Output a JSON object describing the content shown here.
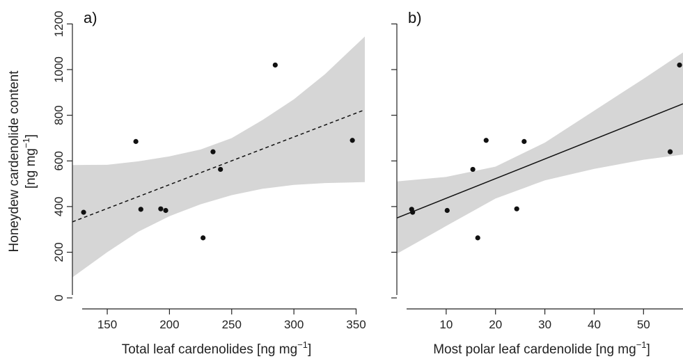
{
  "figure": {
    "ylabel_line1": "Honeydew cardenolide content",
    "ylabel_line2": "[ng mg",
    "ylabel_line2_sup": "−1",
    "ylabel_line2_end": "]"
  },
  "chart_data": [
    {
      "type": "scatter",
      "panel_label": "a)",
      "xlabel": "Total leaf cardenolides [ng mg",
      "xlabel_sup": "−1",
      "xlabel_end": "]",
      "xlim": [
        122,
        357
      ],
      "ylim": [
        -30,
        1250
      ],
      "x_ticks": [
        150,
        200,
        250,
        300,
        350
      ],
      "y_ticks": [
        0,
        200,
        400,
        600,
        800,
        1000,
        1200
      ],
      "points": [
        {
          "x": 131,
          "y": 375
        },
        {
          "x": 173,
          "y": 685
        },
        {
          "x": 177,
          "y": 388
        },
        {
          "x": 193,
          "y": 390
        },
        {
          "x": 197,
          "y": 383
        },
        {
          "x": 227,
          "y": 263
        },
        {
          "x": 235,
          "y": 640
        },
        {
          "x": 241,
          "y": 563
        },
        {
          "x": 285,
          "y": 1020
        },
        {
          "x": 347,
          "y": 690
        }
      ],
      "fit_line": {
        "style": "dashed",
        "x": [
          122,
          357
        ],
        "y": [
          333,
          824
        ]
      },
      "confidence_band": {
        "x": [
          122,
          150,
          175,
          200,
          225,
          250,
          275,
          300,
          325,
          357
        ],
        "lower": [
          90,
          200,
          290,
          358,
          410,
          450,
          478,
          495,
          503,
          507
        ],
        "upper": [
          582,
          583,
          598,
          620,
          650,
          700,
          780,
          870,
          980,
          1145
        ]
      },
      "colors": {
        "band": "#d6d6d6",
        "line": "#111111",
        "points": "#111111"
      }
    },
    {
      "type": "scatter",
      "panel_label": "b)",
      "xlabel": "Most polar leaf cardenolide [ng mg",
      "xlabel_sup": "−1",
      "xlabel_end": "]",
      "xlim": [
        0,
        58
      ],
      "ylim": [
        -30,
        1250
      ],
      "x_ticks": [
        10,
        20,
        30,
        40,
        50
      ],
      "y_ticks": [
        0,
        200,
        400,
        600,
        800,
        1000,
        1200
      ],
      "points": [
        {
          "x": 3.0,
          "y": 388
        },
        {
          "x": 3.2,
          "y": 375
        },
        {
          "x": 10.2,
          "y": 383
        },
        {
          "x": 15.4,
          "y": 563
        },
        {
          "x": 16.4,
          "y": 263
        },
        {
          "x": 18.1,
          "y": 690
        },
        {
          "x": 24.3,
          "y": 390
        },
        {
          "x": 25.8,
          "y": 685
        },
        {
          "x": 55.4,
          "y": 640
        },
        {
          "x": 57.3,
          "y": 1020
        }
      ],
      "fit_line": {
        "style": "solid",
        "x": [
          0,
          58
        ],
        "y": [
          350,
          850
        ]
      },
      "confidence_band": {
        "x": [
          0,
          10,
          20,
          30,
          40,
          50,
          58
        ],
        "lower": [
          193,
          315,
          435,
          515,
          565,
          605,
          628
        ],
        "upper": [
          510,
          530,
          575,
          680,
          820,
          960,
          1075
        ]
      },
      "colors": {
        "band": "#d6d6d6",
        "line": "#111111",
        "points": "#111111"
      }
    }
  ]
}
